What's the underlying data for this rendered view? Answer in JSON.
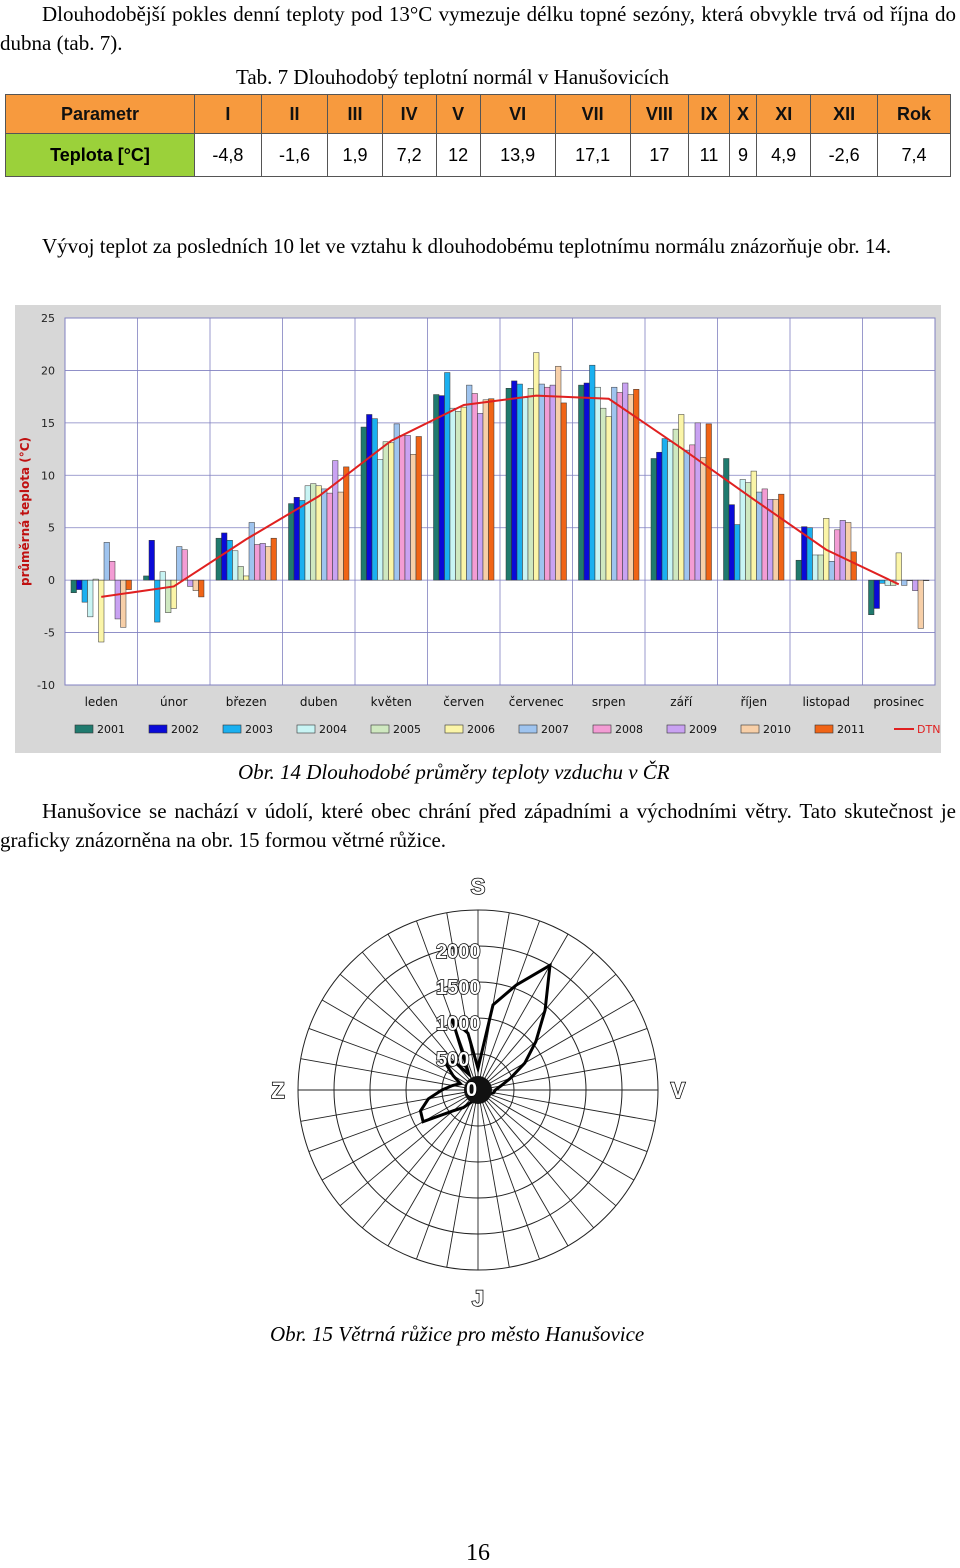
{
  "intro": {
    "text": "Dlouhodobější pokles denní teploty pod 13°C vymezuje délku topné sezóny, která obvykle trvá od října do dubna (tab. 7)."
  },
  "table": {
    "caption": "Tab. 7 Dlouhodobý teplotní normál v Hanušovicích",
    "header_label": "Parametr",
    "columns": [
      "I",
      "II",
      "III",
      "IV",
      "V",
      "VI",
      "VII",
      "VIII",
      "IX",
      "X",
      "XI",
      "XII",
      "Rok"
    ],
    "row_label": "Teplota [°C]",
    "values": [
      "-4,8",
      "-1,6",
      "1,9",
      "7,2",
      "12",
      "13,9",
      "17,1",
      "17",
      "11",
      "9",
      "4,9",
      "-2,6",
      "7,4"
    ],
    "colors": {
      "header": "#f79a3e",
      "row_label": "#9bd13a"
    }
  },
  "para2": {
    "text": "Vývoj teplot za posledních 10 let ve vztahu k dlouhodobému teplotnímu normálu znázorňuje obr. 14."
  },
  "chart_data": {
    "type": "bar",
    "ylabel": "průměrná teplota (°C)",
    "ylim": [
      -10,
      25
    ],
    "yticks": [
      "25",
      "20",
      "15",
      "10",
      "5",
      "0",
      "-5",
      "-10"
    ],
    "grid": true,
    "legend_position": "bottom",
    "background": "#d7d7d7",
    "categories": [
      "leden",
      "únor",
      "březen",
      "duben",
      "květen",
      "červen",
      "červenec",
      "srpen",
      "září",
      "říjen",
      "listopad",
      "prosinec"
    ],
    "series": [
      {
        "name": "2001",
        "color": "#1f7a6e",
        "values": [
          -1.2,
          0.4,
          4.0,
          7.3,
          14.6,
          17.7,
          18.3,
          18.6,
          11.6,
          11.6,
          1.9,
          -3.3
        ]
      },
      {
        "name": "2002",
        "color": "#0a0ad8",
        "values": [
          -0.9,
          3.8,
          4.5,
          7.9,
          15.8,
          17.6,
          19.0,
          18.8,
          12.2,
          7.2,
          5.1,
          -2.7
        ]
      },
      {
        "name": "2003",
        "color": "#1ab0f0",
        "values": [
          -2.1,
          -4.0,
          3.8,
          7.6,
          15.4,
          19.8,
          18.7,
          20.5,
          13.5,
          5.3,
          5.0,
          -0.3
        ]
      },
      {
        "name": "2004",
        "color": "#c8f4f4",
        "values": [
          -3.5,
          0.8,
          2.8,
          9.0,
          11.5,
          16.4,
          17.4,
          18.4,
          13.2,
          9.6,
          2.4,
          -0.5
        ]
      },
      {
        "name": "2005",
        "color": "#cfe8c0",
        "values": [
          0.1,
          -3.1,
          1.3,
          9.2,
          13.2,
          16.1,
          18.3,
          16.4,
          14.4,
          9.3,
          2.4,
          -0.5
        ]
      },
      {
        "name": "2006",
        "color": "#fbf5a8",
        "values": [
          -5.9,
          -2.7,
          0.4,
          9.0,
          13.1,
          16.5,
          21.7,
          15.6,
          15.8,
          10.4,
          5.9,
          2.6
        ]
      },
      {
        "name": "2007",
        "color": "#9fc4ef",
        "values": [
          3.6,
          3.2,
          5.5,
          8.7,
          14.9,
          18.6,
          18.7,
          18.4,
          12.4,
          8.4,
          1.8,
          -0.5
        ]
      },
      {
        "name": "2008",
        "color": "#f39cd4",
        "values": [
          1.8,
          2.9,
          3.4,
          8.3,
          13.8,
          17.8,
          18.4,
          17.9,
          12.9,
          8.7,
          4.8,
          0.0
        ]
      },
      {
        "name": "2009",
        "color": "#c9a2f2",
        "values": [
          -3.7,
          -0.6,
          3.5,
          11.4,
          13.8,
          15.9,
          18.6,
          18.8,
          15.0,
          7.7,
          5.7,
          -1.0
        ]
      },
      {
        "name": "2010",
        "color": "#f7cfa8",
        "values": [
          -4.5,
          -1.0,
          3.2,
          8.4,
          12.0,
          17.2,
          20.4,
          17.7,
          11.7,
          7.7,
          5.5,
          -4.6
        ]
      },
      {
        "name": "2011",
        "color": "#f06416",
        "values": [
          -0.9,
          -1.6,
          4.0,
          10.8,
          13.7,
          17.3,
          16.9,
          18.2,
          14.9,
          8.2,
          2.7,
          0.0
        ]
      }
    ],
    "normal": {
      "name": "DTN",
      "color": "#e02020",
      "values": [
        -1.6,
        -0.6,
        3.9,
        8.0,
        13.3,
        16.7,
        17.6,
        17.3,
        12.6,
        7.7,
        2.9,
        -0.4
      ]
    }
  },
  "fig14": {
    "caption": "Obr. 14 Dlouhodobé průměry teploty vzduchu v ČR"
  },
  "para3": {
    "text": "Hanušovice se nachází v údolí, které obec chrání před západními a východními větry. Tato skutečnost je graficky znázorněna na obr. 15 formou větrné růžice."
  },
  "rose": {
    "directions": {
      "north": "S",
      "south": "J",
      "west": "Z",
      "east": "V"
    },
    "ring_labels": [
      "2000",
      "1500",
      "1000",
      "500",
      "0"
    ],
    "max": 2500,
    "sectors": 36,
    "values": [
      300,
      1200,
      1550,
      2000,
      1450,
      1050,
      750,
      480,
      320,
      240,
      220,
      160,
      140,
      120,
      110,
      100,
      90,
      110,
      90,
      130,
      140,
      200,
      320,
      450,
      880,
      850,
      700,
      500,
      360,
      260,
      400,
      600,
      500,
      250,
      1050,
      800
    ]
  },
  "fig15": {
    "caption": "Obr. 15 Větrná růžice pro město Hanušovice"
  },
  "page_number": "16"
}
